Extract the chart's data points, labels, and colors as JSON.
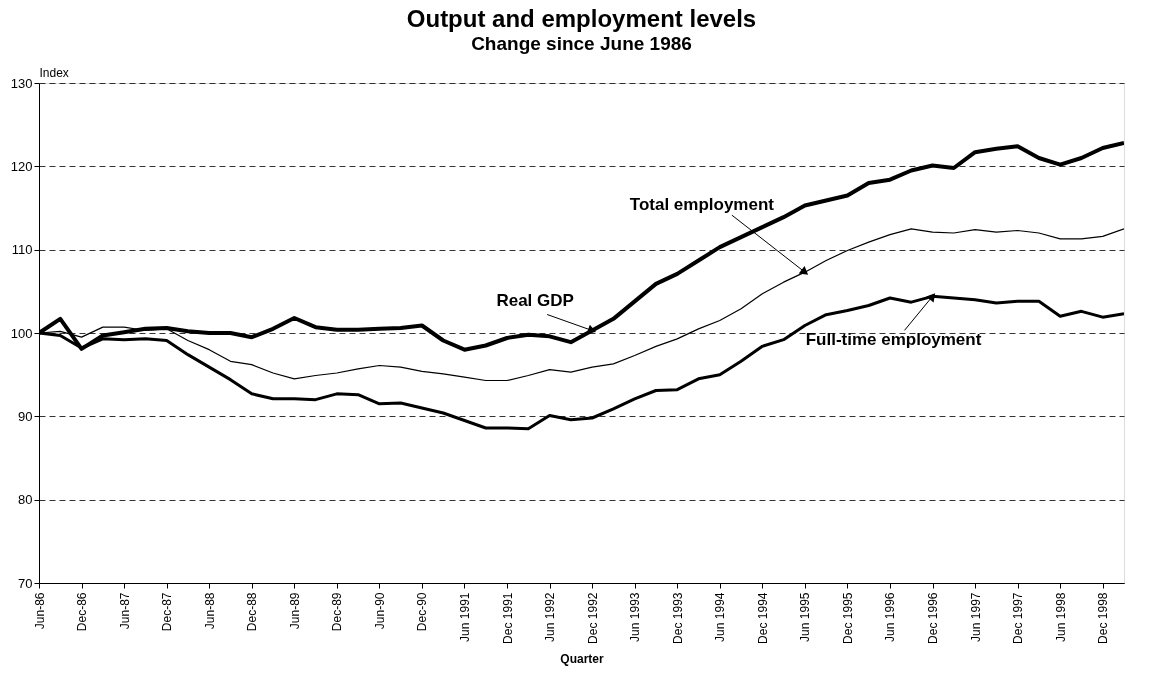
{
  "chart_data": {
    "type": "line",
    "title": "Output and employment levels",
    "subtitle": "Change since June 1986",
    "xlabel": "Quarter",
    "ylabel": "Index",
    "categories": [
      "Jun-86",
      null,
      "Dec-86",
      null,
      "Jun-87",
      null,
      "Dec-87",
      null,
      "Jun-88",
      null,
      "Dec-88",
      null,
      "Jun-89",
      null,
      "Dec-89",
      null,
      "Jun-90",
      null,
      "Dec-90",
      null,
      "Jun 1991",
      null,
      "Dec 1991",
      null,
      "Jun 1992",
      null,
      "Dec 1992",
      null,
      "Jun 1993",
      null,
      "Dec 1993",
      null,
      "Jun 1994",
      null,
      "Dec 1994",
      null,
      "Jun 1995",
      null,
      "Dec 1995",
      null,
      "Jun 1996",
      null,
      "Dec 1996",
      null,
      "Jun 1997",
      null,
      "Dec 1997",
      null,
      "Jun 1998",
      null,
      "Dec 1998",
      null
    ],
    "series": [
      {
        "name": "Real GDP",
        "color": "#000000",
        "values": [
          100,
          101.7,
          98.1,
          99.7,
          100.1,
          100.5,
          100.6,
          100.2,
          100.0,
          100.0,
          99.5,
          100.5,
          101.8,
          100.7,
          100.4,
          100.4,
          100.5,
          100.6,
          100.9,
          99.1,
          98.0,
          98.5,
          99.4,
          99.8,
          99.6,
          98.9,
          100.3,
          101.7,
          103.8,
          105.9,
          107.1,
          108.7,
          110.3,
          111.5,
          112.7,
          113.9,
          115.3,
          115.9,
          116.5,
          118.0,
          118.4,
          119.5,
          120.1,
          119.8,
          121.7,
          122.1,
          122.4,
          121.0,
          120.2,
          121.0,
          122.2,
          122.8
        ]
      },
      {
        "name": "Total employment",
        "color": "#000000",
        "values": [
          100,
          100.2,
          99.5,
          100.7,
          100.7,
          100.3,
          100.5,
          99.1,
          98.0,
          96.6,
          96.2,
          95.2,
          94.5,
          94.9,
          95.2,
          95.7,
          96.1,
          95.9,
          95.4,
          95.1,
          94.7,
          94.3,
          94.3,
          94.9,
          95.6,
          95.3,
          95.9,
          96.3,
          97.3,
          98.4,
          99.3,
          100.5,
          101.5,
          102.9,
          104.7,
          106.1,
          107.3,
          108.7,
          109.9,
          110.9,
          111.8,
          112.5,
          112.1,
          112.0,
          112.4,
          112.1,
          112.3,
          112.0,
          111.3,
          111.3,
          111.6,
          112.5
        ]
      },
      {
        "name": "Full-time employment",
        "color": "#000000",
        "values": [
          100,
          99.7,
          98.2,
          99.3,
          99.2,
          99.3,
          99.1,
          97.4,
          95.9,
          94.4,
          92.7,
          92.1,
          92.1,
          92.0,
          92.7,
          92.6,
          91.5,
          91.6,
          91.0,
          90.4,
          89.5,
          88.6,
          88.6,
          88.5,
          90.1,
          89.6,
          89.8,
          90.9,
          92.1,
          93.1,
          93.2,
          94.5,
          95.0,
          96.6,
          98.4,
          99.2,
          100.9,
          102.2,
          102.7,
          103.3,
          104.2,
          103.7,
          104.4,
          104.2,
          104.0,
          103.6,
          103.8,
          103.8,
          102.0,
          102.6,
          101.9,
          102.3
        ]
      }
    ],
    "ylim": [
      70,
      130
    ],
    "yticks": [
      70,
      80,
      90,
      100,
      110,
      120,
      130
    ],
    "grid": "y"
  }
}
